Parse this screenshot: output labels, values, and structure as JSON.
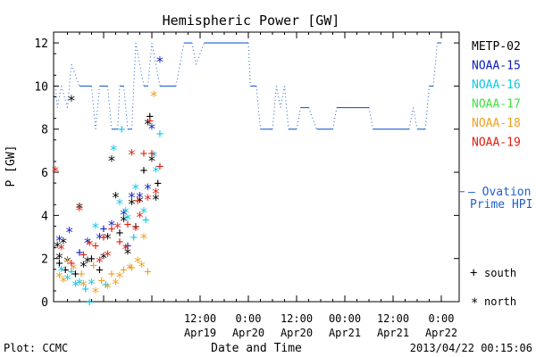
{
  "chart_data": {
    "type": "scatter",
    "title": "Hemispheric Power [GW]",
    "xlabel": "Date and Time",
    "ylabel": "P [GW]",
    "xlim_hours": [
      0,
      96
    ],
    "ylim": [
      0,
      12.5
    ],
    "yticks": [
      0,
      2,
      4,
      6,
      8,
      10,
      12
    ],
    "xticks": [
      {
        "h": 36,
        "time": "12:00",
        "date": "Apr19"
      },
      {
        "h": 48,
        "time": "0:00",
        "date": "Apr20"
      },
      {
        "h": 60,
        "time": "12:00",
        "date": "Apr20"
      },
      {
        "h": 72,
        "time": "00:00",
        "date": "Apr21"
      },
      {
        "h": 84,
        "time": "12:00",
        "date": "Apr21"
      },
      {
        "h": 96,
        "time": "0:00",
        "date": "Apr22"
      }
    ],
    "ovation": {
      "label_line1": "— Ovation",
      "label_line2": "Prime HPI",
      "level": 5.1,
      "color": "#1f5fd0",
      "steps": [
        [
          0,
          10
        ],
        [
          0.5,
          9
        ],
        [
          1.5,
          10
        ],
        [
          3,
          9
        ],
        [
          4,
          11
        ],
        [
          6,
          10
        ],
        [
          9,
          10
        ],
        [
          10,
          8
        ],
        [
          11,
          10
        ],
        [
          13,
          10
        ],
        [
          14,
          8
        ],
        [
          15.5,
          8
        ],
        [
          16,
          10
        ],
        [
          17,
          10
        ],
        [
          18,
          8
        ],
        [
          19,
          8
        ],
        [
          20,
          12
        ],
        [
          22,
          10
        ],
        [
          23,
          10
        ],
        [
          24,
          12
        ],
        [
          26,
          10
        ],
        [
          29,
          10
        ],
        [
          30,
          10
        ],
        [
          31,
          11
        ],
        [
          32,
          12
        ],
        [
          34,
          12
        ],
        [
          35,
          11
        ],
        [
          37,
          12
        ],
        [
          48,
          12
        ],
        [
          48.5,
          10
        ],
        [
          50,
          10
        ],
        [
          51,
          8
        ],
        [
          54,
          8
        ],
        [
          55,
          10
        ],
        [
          56,
          9
        ],
        [
          57,
          10
        ],
        [
          58,
          8
        ],
        [
          60,
          8
        ],
        [
          61,
          9
        ],
        [
          63,
          9
        ],
        [
          65,
          8
        ],
        [
          69,
          8
        ],
        [
          70,
          9
        ],
        [
          78,
          9
        ],
        [
          79,
          8
        ],
        [
          88,
          8
        ],
        [
          89,
          9
        ],
        [
          90,
          8
        ],
        [
          92,
          8
        ],
        [
          93,
          10
        ],
        [
          94,
          10
        ],
        [
          95,
          12
        ],
        [
          96,
          12
        ]
      ]
    },
    "series": [
      {
        "name": "METP-02",
        "color": "#000000"
      },
      {
        "name": "NOAA-15",
        "color": "#1020c0"
      },
      {
        "name": "NOAA-16",
        "color": "#10c8e8"
      },
      {
        "name": "NOAA-17",
        "color": "#40e040"
      },
      {
        "name": "NOAA-18",
        "color": "#f0a020"
      },
      {
        "name": "NOAA-19",
        "color": "#e02010"
      }
    ],
    "hemisphere_key": {
      "south_symbol": "+",
      "south_label": "south",
      "north_symbol": "*",
      "north_label": "north"
    },
    "points": [
      {
        "s": 0,
        "m": "*",
        "x": 0.5,
        "y": 2.6
      },
      {
        "s": 0,
        "m": "*",
        "x": 1,
        "y": 2.1
      },
      {
        "s": 0,
        "m": "*",
        "x": 2,
        "y": 2.8
      },
      {
        "s": 0,
        "m": "*",
        "x": 3,
        "y": 1.9
      },
      {
        "s": 0,
        "m": "*",
        "x": 4,
        "y": 9.4
      },
      {
        "s": 0,
        "m": "*",
        "x": 6,
        "y": 4.4
      },
      {
        "s": 0,
        "m": "*",
        "x": 7,
        "y": 1.7
      },
      {
        "s": 0,
        "m": "*",
        "x": 8,
        "y": 1.9
      },
      {
        "s": 0,
        "m": "*",
        "x": 12,
        "y": 2.1
      },
      {
        "s": 0,
        "m": "*",
        "x": 13,
        "y": 3.0
      },
      {
        "s": 0,
        "m": "*",
        "x": 14,
        "y": 6.6
      },
      {
        "s": 0,
        "m": "*",
        "x": 15,
        "y": 4.9
      },
      {
        "s": 0,
        "m": "*",
        "x": 17,
        "y": 3.8
      },
      {
        "s": 0,
        "m": "*",
        "x": 18,
        "y": 2.3
      },
      {
        "s": 0,
        "m": "*",
        "x": 19,
        "y": 4.6
      },
      {
        "s": 0,
        "m": "*",
        "x": 21,
        "y": 4.7
      },
      {
        "s": 0,
        "m": "*",
        "x": 23,
        "y": 8.3
      },
      {
        "s": 0,
        "m": "*",
        "x": 24,
        "y": 6.6
      },
      {
        "s": 0,
        "m": "*",
        "x": 25,
        "y": 4.8
      },
      {
        "s": 0,
        "m": "+",
        "x": 1,
        "y": 1.8
      },
      {
        "s": 0,
        "m": "+",
        "x": 2.5,
        "y": 1.5
      },
      {
        "s": 0,
        "m": "+",
        "x": 5,
        "y": 1.3
      },
      {
        "s": 0,
        "m": "+",
        "x": 9,
        "y": 2.0
      },
      {
        "s": 0,
        "m": "+",
        "x": 11,
        "y": 1.5
      },
      {
        "s": 0,
        "m": "+",
        "x": 16,
        "y": 3.2
      },
      {
        "s": 0,
        "m": "+",
        "x": 20,
        "y": 3.5
      },
      {
        "s": 0,
        "m": "+",
        "x": 22,
        "y": 6.1
      },
      {
        "s": 0,
        "m": "+",
        "x": 23.5,
        "y": 8.6
      },
      {
        "s": 0,
        "m": "+",
        "x": 25.5,
        "y": 5.5
      },
      {
        "s": 1,
        "m": "*",
        "x": 1,
        "y": 2.9
      },
      {
        "s": 1,
        "m": "*",
        "x": 3.5,
        "y": 3.3
      },
      {
        "s": 1,
        "m": "*",
        "x": 8,
        "y": 2.8
      },
      {
        "s": 1,
        "m": "*",
        "x": 11,
        "y": 3.0
      },
      {
        "s": 1,
        "m": "*",
        "x": 14,
        "y": 3.6
      },
      {
        "s": 1,
        "m": "*",
        "x": 17,
        "y": 4.1
      },
      {
        "s": 1,
        "m": "*",
        "x": 19,
        "y": 4.9
      },
      {
        "s": 1,
        "m": "*",
        "x": 21,
        "y": 4.9
      },
      {
        "s": 1,
        "m": "*",
        "x": 23,
        "y": 5.3
      },
      {
        "s": 1,
        "m": "*",
        "x": 24,
        "y": 8.1
      },
      {
        "s": 1,
        "m": "*",
        "x": 26,
        "y": 11.2
      },
      {
        "s": 1,
        "m": "+",
        "x": 6,
        "y": 2.3
      },
      {
        "s": 1,
        "m": "+",
        "x": 12,
        "y": 3.4
      },
      {
        "s": 1,
        "m": "+",
        "x": 18,
        "y": 2.6
      },
      {
        "s": 2,
        "m": "*",
        "x": 1.5,
        "y": 1.5
      },
      {
        "s": 2,
        "m": "*",
        "x": 3,
        "y": 1.1
      },
      {
        "s": 2,
        "m": "*",
        "x": 5,
        "y": 0.8
      },
      {
        "s": 2,
        "m": "*",
        "x": 6,
        "y": 0.9
      },
      {
        "s": 2,
        "m": "*",
        "x": 9,
        "y": 0.9
      },
      {
        "s": 2,
        "m": "*",
        "x": 10,
        "y": 3.5
      },
      {
        "s": 2,
        "m": "*",
        "x": 14.5,
        "y": 7.1
      },
      {
        "s": 2,
        "m": "*",
        "x": 16,
        "y": 4.6
      },
      {
        "s": 2,
        "m": "*",
        "x": 17.5,
        "y": 4.2
      },
      {
        "s": 2,
        "m": "*",
        "x": 18,
        "y": 3.9
      },
      {
        "s": 2,
        "m": "*",
        "x": 20,
        "y": 5.3
      },
      {
        "s": 2,
        "m": "*",
        "x": 22,
        "y": 4.2
      },
      {
        "s": 2,
        "m": "*",
        "x": 24.5,
        "y": 6.8
      },
      {
        "s": 2,
        "m": "*",
        "x": 25,
        "y": 6.1
      },
      {
        "s": 2,
        "m": "+",
        "x": 4,
        "y": 1.4
      },
      {
        "s": 2,
        "m": "+",
        "x": 7.5,
        "y": 0.6
      },
      {
        "s": 2,
        "m": "+",
        "x": 8.5,
        "y": 0.0
      },
      {
        "s": 2,
        "m": "+",
        "x": 12.5,
        "y": 0.8
      },
      {
        "s": 2,
        "m": "+",
        "x": 16.5,
        "y": 8.0
      },
      {
        "s": 2,
        "m": "+",
        "x": 19.5,
        "y": 3.0
      },
      {
        "s": 2,
        "m": "+",
        "x": 22.5,
        "y": 3.8
      },
      {
        "s": 2,
        "m": "+",
        "x": 26,
        "y": 7.8
      },
      {
        "s": 4,
        "m": "*",
        "x": 1,
        "y": 1.2
      },
      {
        "s": 4,
        "m": "*",
        "x": 2,
        "y": 1.0
      },
      {
        "s": 4,
        "m": "*",
        "x": 4.5,
        "y": 1.6
      },
      {
        "s": 4,
        "m": "*",
        "x": 7,
        "y": 0.8
      },
      {
        "s": 4,
        "m": "*",
        "x": 10,
        "y": 0.5
      },
      {
        "s": 4,
        "m": "*",
        "x": 13,
        "y": 0.7
      },
      {
        "s": 4,
        "m": "*",
        "x": 15,
        "y": 0.9
      },
      {
        "s": 4,
        "m": "*",
        "x": 16,
        "y": 1.2
      },
      {
        "s": 4,
        "m": "*",
        "x": 18.5,
        "y": 1.6
      },
      {
        "s": 4,
        "m": "*",
        "x": 20.5,
        "y": 1.9
      },
      {
        "s": 4,
        "m": "*",
        "x": 21.5,
        "y": 1.7
      },
      {
        "s": 4,
        "m": "*",
        "x": 22,
        "y": 3.0
      },
      {
        "s": 4,
        "m": "*",
        "x": 24.5,
        "y": 9.6
      },
      {
        "s": 4,
        "m": "+",
        "x": 3,
        "y": 1.9
      },
      {
        "s": 4,
        "m": "+",
        "x": 6.5,
        "y": 1.3
      },
      {
        "s": 4,
        "m": "+",
        "x": 9.5,
        "y": 1.7
      },
      {
        "s": 4,
        "m": "+",
        "x": 11.5,
        "y": 1.0
      },
      {
        "s": 4,
        "m": "+",
        "x": 14,
        "y": 1.3
      },
      {
        "s": 4,
        "m": "+",
        "x": 17,
        "y": 1.5
      },
      {
        "s": 4,
        "m": "+",
        "x": 19,
        "y": 1.6
      },
      {
        "s": 4,
        "m": "+",
        "x": 23,
        "y": 1.4
      },
      {
        "s": 5,
        "m": "*",
        "x": 0,
        "y": 6.1
      },
      {
        "s": 5,
        "m": "*",
        "x": 1.5,
        "y": 2.5
      },
      {
        "s": 5,
        "m": "*",
        "x": 6,
        "y": 4.3
      },
      {
        "s": 5,
        "m": "*",
        "x": 8.5,
        "y": 2.7
      },
      {
        "s": 5,
        "m": "*",
        "x": 11,
        "y": 1.9
      },
      {
        "s": 5,
        "m": "*",
        "x": 13,
        "y": 2.2
      },
      {
        "s": 5,
        "m": "*",
        "x": 15.5,
        "y": 3.5
      },
      {
        "s": 5,
        "m": "*",
        "x": 17.5,
        "y": 2.5
      },
      {
        "s": 5,
        "m": "*",
        "x": 19,
        "y": 6.9
      },
      {
        "s": 5,
        "m": "*",
        "x": 20,
        "y": 3.4
      },
      {
        "s": 5,
        "m": "*",
        "x": 21,
        "y": 4.0
      },
      {
        "s": 5,
        "m": "*",
        "x": 23,
        "y": 4.8
      },
      {
        "s": 5,
        "m": "*",
        "x": 25,
        "y": 5.1
      },
      {
        "s": 5,
        "m": "+",
        "x": 4,
        "y": 1.8
      },
      {
        "s": 5,
        "m": "+",
        "x": 7,
        "y": 2.2
      },
      {
        "s": 5,
        "m": "+",
        "x": 10,
        "y": 2.6
      },
      {
        "s": 5,
        "m": "+",
        "x": 12,
        "y": 3.0
      },
      {
        "s": 5,
        "m": "+",
        "x": 14,
        "y": 3.4
      },
      {
        "s": 5,
        "m": "+",
        "x": 16,
        "y": 2.8
      },
      {
        "s": 5,
        "m": "+",
        "x": 18,
        "y": 3.6
      },
      {
        "s": 5,
        "m": "+",
        "x": 20.5,
        "y": 4.7
      },
      {
        "s": 5,
        "m": "+",
        "x": 22,
        "y": 6.9
      },
      {
        "s": 5,
        "m": "+",
        "x": 24,
        "y": 6.9
      },
      {
        "s": 5,
        "m": "+",
        "x": 26,
        "y": 6.3
      },
      {
        "s": 5,
        "m": "+",
        "x": 23.5,
        "y": 8.4
      }
    ]
  },
  "footer": {
    "plot_label": "Plot: CCMC",
    "timestamp": "2013/04/22 00:15:06"
  }
}
